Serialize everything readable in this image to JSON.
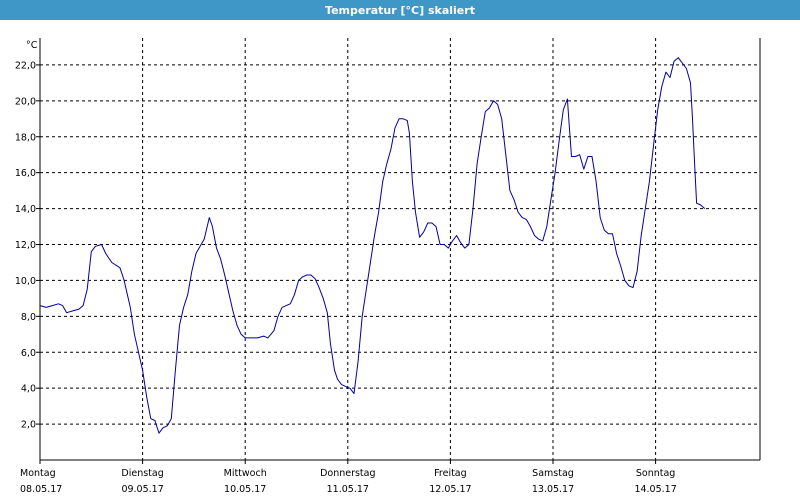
{
  "window": {
    "title": "Temperatur [°C] skaliert"
  },
  "chart_data": {
    "type": "line",
    "title": "Temperatur [°C] skaliert",
    "ylabel": "°C",
    "xlabel": "",
    "ylim": [
      0,
      24
    ],
    "yticks": [
      "2,0",
      "4,0",
      "6,0",
      "8,0",
      "10,0",
      "12,0",
      "14,0",
      "16,0",
      "18,0",
      "20,0",
      "22,0"
    ],
    "xlim": [
      0,
      7.1
    ],
    "days": [
      {
        "name": "Montag",
        "date": "08.05.17"
      },
      {
        "name": "Dienstag",
        "date": "09.05.17"
      },
      {
        "name": "Mittwoch",
        "date": "10.05.17"
      },
      {
        "name": "Donnerstag",
        "date": "11.05.17"
      },
      {
        "name": "Freitag",
        "date": "12.05.17"
      },
      {
        "name": "Samstag",
        "date": "13.05.17"
      },
      {
        "name": "Sonntag",
        "date": "14.05.17"
      }
    ],
    "grid": true,
    "series": [
      {
        "color": "#0000a0",
        "points": [
          [
            0.0,
            8.6
          ],
          [
            0.06,
            8.5
          ],
          [
            0.12,
            8.6
          ],
          [
            0.18,
            8.7
          ],
          [
            0.22,
            8.6
          ],
          [
            0.26,
            8.2
          ],
          [
            0.32,
            8.3
          ],
          [
            0.38,
            8.4
          ],
          [
            0.42,
            8.6
          ],
          [
            0.46,
            9.5
          ],
          [
            0.5,
            11.6
          ],
          [
            0.54,
            11.9
          ],
          [
            0.6,
            12.0
          ],
          [
            0.64,
            11.5
          ],
          [
            0.7,
            11.0
          ],
          [
            0.78,
            10.7
          ],
          [
            0.82,
            10.0
          ],
          [
            0.88,
            8.5
          ],
          [
            0.92,
            7.0
          ],
          [
            0.96,
            6.0
          ],
          [
            1.0,
            5.0
          ],
          [
            1.04,
            3.5
          ],
          [
            1.08,
            2.3
          ],
          [
            1.12,
            2.2
          ],
          [
            1.16,
            1.5
          ],
          [
            1.2,
            1.8
          ],
          [
            1.24,
            1.9
          ],
          [
            1.28,
            2.3
          ],
          [
            1.32,
            5.0
          ],
          [
            1.36,
            7.5
          ],
          [
            1.4,
            8.5
          ],
          [
            1.44,
            9.2
          ],
          [
            1.48,
            10.5
          ],
          [
            1.52,
            11.5
          ],
          [
            1.56,
            11.9
          ],
          [
            1.6,
            12.3
          ],
          [
            1.63,
            13.0
          ],
          [
            1.65,
            13.5
          ],
          [
            1.68,
            13.0
          ],
          [
            1.72,
            11.8
          ],
          [
            1.76,
            11.2
          ],
          [
            1.8,
            10.3
          ],
          [
            1.84,
            9.3
          ],
          [
            1.88,
            8.3
          ],
          [
            1.92,
            7.5
          ],
          [
            1.96,
            7.0
          ],
          [
            2.0,
            6.8
          ],
          [
            2.06,
            6.8
          ],
          [
            2.12,
            6.8
          ],
          [
            2.18,
            6.9
          ],
          [
            2.22,
            6.8
          ],
          [
            2.28,
            7.2
          ],
          [
            2.32,
            8.0
          ],
          [
            2.36,
            8.5
          ],
          [
            2.4,
            8.6
          ],
          [
            2.44,
            8.7
          ],
          [
            2.48,
            9.2
          ],
          [
            2.52,
            10.0
          ],
          [
            2.56,
            10.2
          ],
          [
            2.6,
            10.3
          ],
          [
            2.64,
            10.3
          ],
          [
            2.68,
            10.1
          ],
          [
            2.72,
            9.6
          ],
          [
            2.76,
            9.0
          ],
          [
            2.8,
            8.2
          ],
          [
            2.83,
            6.5
          ],
          [
            2.87,
            5.0
          ],
          [
            2.9,
            4.5
          ],
          [
            2.94,
            4.2
          ],
          [
            2.98,
            4.1
          ],
          [
            3.02,
            4.0
          ],
          [
            3.06,
            3.7
          ],
          [
            3.1,
            5.5
          ],
          [
            3.14,
            8.0
          ],
          [
            3.18,
            9.5
          ],
          [
            3.22,
            11.0
          ],
          [
            3.26,
            12.5
          ],
          [
            3.3,
            13.8
          ],
          [
            3.34,
            15.5
          ],
          [
            3.38,
            16.5
          ],
          [
            3.42,
            17.3
          ],
          [
            3.46,
            18.5
          ],
          [
            3.5,
            19.0
          ],
          [
            3.54,
            19.0
          ],
          [
            3.58,
            18.9
          ],
          [
            3.6,
            18.2
          ],
          [
            3.63,
            15.5
          ],
          [
            3.66,
            13.8
          ],
          [
            3.7,
            12.4
          ],
          [
            3.74,
            12.7
          ],
          [
            3.78,
            13.2
          ],
          [
            3.82,
            13.2
          ],
          [
            3.86,
            13.0
          ],
          [
            3.9,
            12.0
          ],
          [
            3.94,
            12.0
          ],
          [
            3.98,
            11.8
          ],
          [
            4.02,
            12.2
          ],
          [
            4.06,
            12.5
          ],
          [
            4.1,
            12.1
          ],
          [
            4.14,
            11.8
          ],
          [
            4.18,
            12.0
          ],
          [
            4.22,
            14.0
          ],
          [
            4.26,
            16.5
          ],
          [
            4.3,
            18.0
          ],
          [
            4.34,
            19.4
          ],
          [
            4.38,
            19.6
          ],
          [
            4.42,
            20.0
          ],
          [
            4.46,
            19.8
          ],
          [
            4.5,
            19.0
          ],
          [
            4.54,
            17.0
          ],
          [
            4.58,
            15.0
          ],
          [
            4.62,
            14.5
          ],
          [
            4.66,
            13.8
          ],
          [
            4.7,
            13.5
          ],
          [
            4.74,
            13.4
          ],
          [
            4.78,
            13.0
          ],
          [
            4.82,
            12.5
          ],
          [
            4.86,
            12.3
          ],
          [
            4.9,
            12.2
          ],
          [
            4.94,
            13.0
          ],
          [
            4.98,
            14.5
          ],
          [
            5.02,
            16.0
          ],
          [
            5.06,
            17.8
          ],
          [
            5.1,
            19.5
          ],
          [
            5.14,
            20.1
          ],
          [
            5.16,
            18.5
          ],
          [
            5.18,
            16.9
          ],
          [
            5.22,
            16.9
          ],
          [
            5.26,
            17.0
          ],
          [
            5.3,
            16.2
          ],
          [
            5.34,
            16.9
          ],
          [
            5.38,
            16.9
          ],
          [
            5.42,
            15.5
          ],
          [
            5.46,
            13.5
          ],
          [
            5.5,
            12.8
          ],
          [
            5.54,
            12.6
          ],
          [
            5.58,
            12.6
          ],
          [
            5.62,
            11.5
          ],
          [
            5.66,
            10.8
          ],
          [
            5.7,
            10.0
          ],
          [
            5.74,
            9.7
          ],
          [
            5.78,
            9.6
          ],
          [
            5.82,
            10.5
          ],
          [
            5.86,
            12.5
          ],
          [
            5.9,
            14.0
          ],
          [
            5.94,
            15.5
          ],
          [
            5.98,
            17.5
          ],
          [
            6.02,
            19.5
          ],
          [
            6.06,
            20.8
          ],
          [
            6.1,
            21.6
          ],
          [
            6.14,
            21.3
          ],
          [
            6.18,
            22.2
          ],
          [
            6.22,
            22.4
          ],
          [
            6.26,
            22.1
          ],
          [
            6.3,
            21.8
          ],
          [
            6.34,
            21.0
          ],
          [
            6.36,
            19.0
          ],
          [
            6.38,
            16.5
          ],
          [
            6.4,
            14.3
          ],
          [
            6.44,
            14.2
          ],
          [
            6.48,
            14.0
          ]
        ]
      }
    ]
  }
}
